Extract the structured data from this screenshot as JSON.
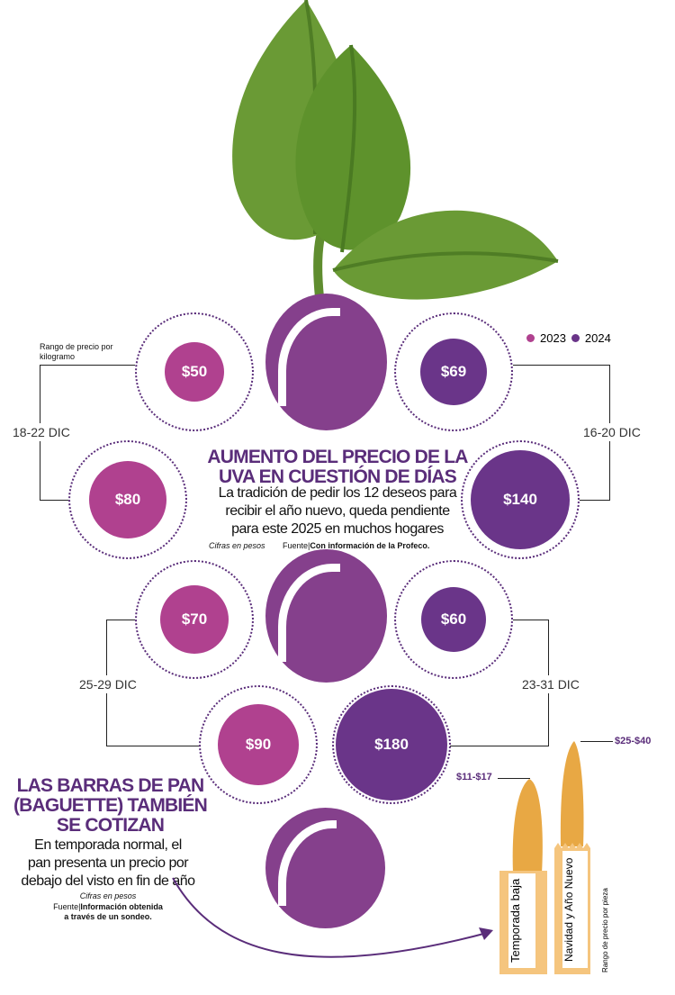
{
  "legend": [
    {
      "label": "2023",
      "color": "#b0418f"
    },
    {
      "label": "2024",
      "color": "#6a3589"
    }
  ],
  "range_label": "Rango de precio por kilogramo",
  "grapes": [
    {
      "period": "18-22 DIC",
      "year": "2023",
      "price_2023": "$50",
      "price_2024": "$80"
    },
    {
      "period": "16-20 DIC",
      "price_2023": "$69",
      "price_2024": "$140"
    },
    {
      "period": "25-29 DIC",
      "price_2023": "$70",
      "price_2024": "$90"
    },
    {
      "period": "23-31 DIC",
      "price_2023": "$60",
      "price_2024": "$180"
    }
  ],
  "main": {
    "title_1": "AUMENTO DEL PRECIO DE LA",
    "title_2": "UVA EN CUESTIÓN DE DÍAS",
    "body_1": "La tradición de pedir los 12 deseos para",
    "body_2": "recibir el año nuevo, queda pendiente",
    "body_3": "para este 2025 en muchos hogares",
    "units": "Cifras en pesos",
    "source_prefix": "Fuente|",
    "source": "Con información de la Profeco."
  },
  "bread": {
    "title_1": "LAS BARRAS DE PAN",
    "title_2": "(BAGUETTE) TAMBIÉN",
    "title_3": "SE COTIZAN",
    "body_1": "En temporada normal, el",
    "body_2": "pan presenta un precio por",
    "body_3": "debajo del visto en fin de año",
    "units": "Cifras en pesos",
    "source_prefix": "Fuente|",
    "source_1": "Información obtenida",
    "source_2": "a través de un sondeo.",
    "low_season": {
      "label": "Temporada baja",
      "range": "$11-$17"
    },
    "holiday": {
      "label": "Navidad y Año Nuevo",
      "range": "$25-$40"
    },
    "range_label": "Rango de precio por pieza"
  },
  "colors": {
    "c2023": "#b0418f",
    "c2024": "#6a3589",
    "grape": "#85408c",
    "leaf": "#6a9a35",
    "bread": "#f2c27a"
  }
}
